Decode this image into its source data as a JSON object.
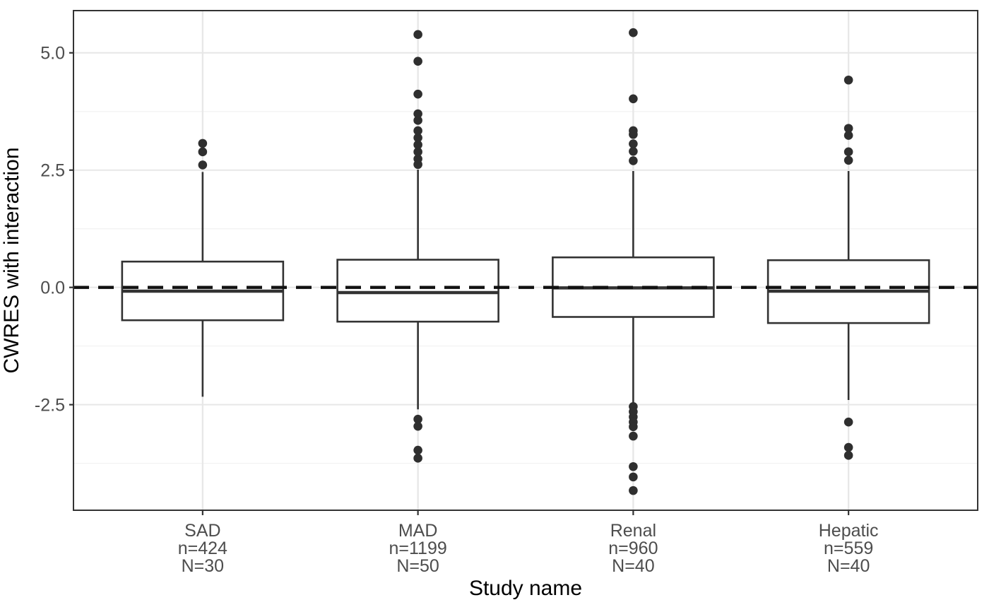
{
  "chart_data": {
    "type": "boxplot",
    "title": "",
    "xlabel": "Study name",
    "ylabel": "CWRES with interaction",
    "ylim": [
      -4.75,
      5.9
    ],
    "yticks": [
      {
        "value": -2.5,
        "label": "-2.5"
      },
      {
        "value": 0.0,
        "label": "0.0"
      },
      {
        "value": 2.5,
        "label": "2.5"
      },
      {
        "value": 5.0,
        "label": "5.0"
      }
    ],
    "yminor": [
      -3.75,
      -1.25,
      1.25,
      3.75
    ],
    "grid": true,
    "legend": "none",
    "reference_line": {
      "y": 0.0,
      "linetype": "dashed"
    },
    "groups": [
      {
        "label": "SAD",
        "n_label": "n=424",
        "N_label": "N=30",
        "lower_whisker": -2.33,
        "q1": -0.7,
        "median": -0.08,
        "q3": 0.55,
        "upper_whisker": 2.46,
        "outliers": [
          2.61,
          2.89,
          3.07
        ]
      },
      {
        "label": "MAD",
        "n_label": "n=1199",
        "N_label": "N=50",
        "lower_whisker": -2.6,
        "q1": -0.73,
        "median": -0.11,
        "q3": 0.59,
        "upper_whisker": 2.51,
        "outliers": [
          2.62,
          2.74,
          2.89,
          3.04,
          3.19,
          3.34,
          3.56,
          3.7,
          4.12,
          4.82,
          5.39,
          -2.81,
          -2.96,
          -3.47,
          -3.64
        ]
      },
      {
        "label": "Renal",
        "n_label": "n=960",
        "N_label": "N=40",
        "lower_whisker": -2.49,
        "q1": -0.63,
        "median": -0.01,
        "q3": 0.64,
        "upper_whisker": 2.48,
        "outliers": [
          2.7,
          2.9,
          3.06,
          3.26,
          3.34,
          4.02,
          5.43,
          -2.54,
          -2.65,
          -2.76,
          -2.87,
          -2.97,
          -3.17,
          -3.82,
          -4.04,
          -4.33
        ]
      },
      {
        "label": "Hepatic",
        "n_label": "n=559",
        "N_label": "N=40",
        "lower_whisker": -2.4,
        "q1": -0.76,
        "median": -0.08,
        "q3": 0.58,
        "upper_whisker": 2.48,
        "outliers": [
          2.71,
          2.89,
          3.24,
          3.39,
          4.42,
          -2.87,
          -3.41,
          -3.58
        ]
      }
    ],
    "colors": {
      "box_stroke": "#333333",
      "median": "#333333",
      "whisker": "#333333",
      "outlier_dot": "#2f2f2f",
      "reference_line": "#111111",
      "grid_major": "#e7e7e7",
      "grid_minor": "#f2f2f2",
      "panel_border": "#333333",
      "axis_text": "#4d4d4d",
      "axis_title": "#000000",
      "panel_background": "#ffffff"
    }
  }
}
